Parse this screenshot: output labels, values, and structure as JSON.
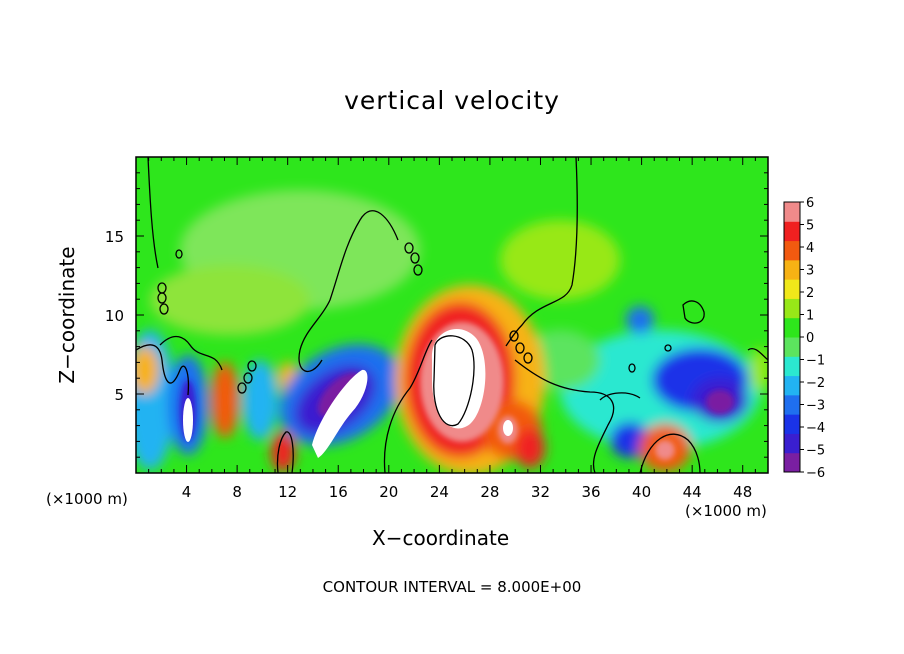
{
  "chart_data": {
    "type": "heatmap",
    "title": "vertical velocity",
    "xlabel": "X−coordinate",
    "ylabel": "Z−coordinate",
    "x_unit_left": "(×1000 m)",
    "x_unit_right": "(×1000 m)",
    "footer": "CONTOUR INTERVAL = 8.000E+00",
    "xlim": [
      0,
      50
    ],
    "ylim": [
      0,
      20
    ],
    "x_ticks": [
      4,
      8,
      12,
      16,
      20,
      24,
      28,
      32,
      36,
      40,
      44,
      48
    ],
    "x_tick_labels": [
      "4",
      "8",
      "12",
      "16",
      "20",
      "24",
      "28",
      "32",
      "36",
      "40",
      "44",
      "48"
    ],
    "y_ticks": [
      5,
      10,
      15
    ],
    "y_tick_labels": [
      "5",
      "10",
      "15"
    ],
    "colorbar": {
      "levels": [
        -6,
        -5,
        -4,
        -3,
        -2,
        -1,
        0,
        1,
        2,
        3,
        4,
        5,
        6
      ],
      "labels": [
        "6",
        "5",
        "4",
        "3",
        "2",
        "1",
        "0",
        "−1",
        "−2",
        "−3",
        "−4",
        "−5",
        "−6"
      ],
      "colors": [
        "#7a1fa2",
        "#3a1fd0",
        "#1a33e8",
        "#1f6fef",
        "#22b3f2",
        "#2be8d0",
        "#5ce45e",
        "#2ee61c",
        "#98e818",
        "#f0e81a",
        "#f7b214",
        "#f25a10",
        "#f02020",
        "#f08a8a"
      ],
      "above_max_color": "#ffffff"
    },
    "features": [
      {
        "x": 26,
        "z": 5.8,
        "value": 9,
        "label": "strong updraft core"
      },
      {
        "x": 17,
        "z": 4.0,
        "value": -5.5,
        "label": "downdraft band"
      },
      {
        "x": 4.2,
        "z": 3.2,
        "value": -5,
        "label": "downdraft"
      },
      {
        "x": 46,
        "z": 4.5,
        "value": -5,
        "label": "downdraft"
      },
      {
        "x": 42,
        "z": 1.5,
        "value": 4,
        "label": "updraft"
      },
      {
        "x": 0.5,
        "z": 6.5,
        "value": 3.5,
        "label": "updraft"
      }
    ]
  }
}
